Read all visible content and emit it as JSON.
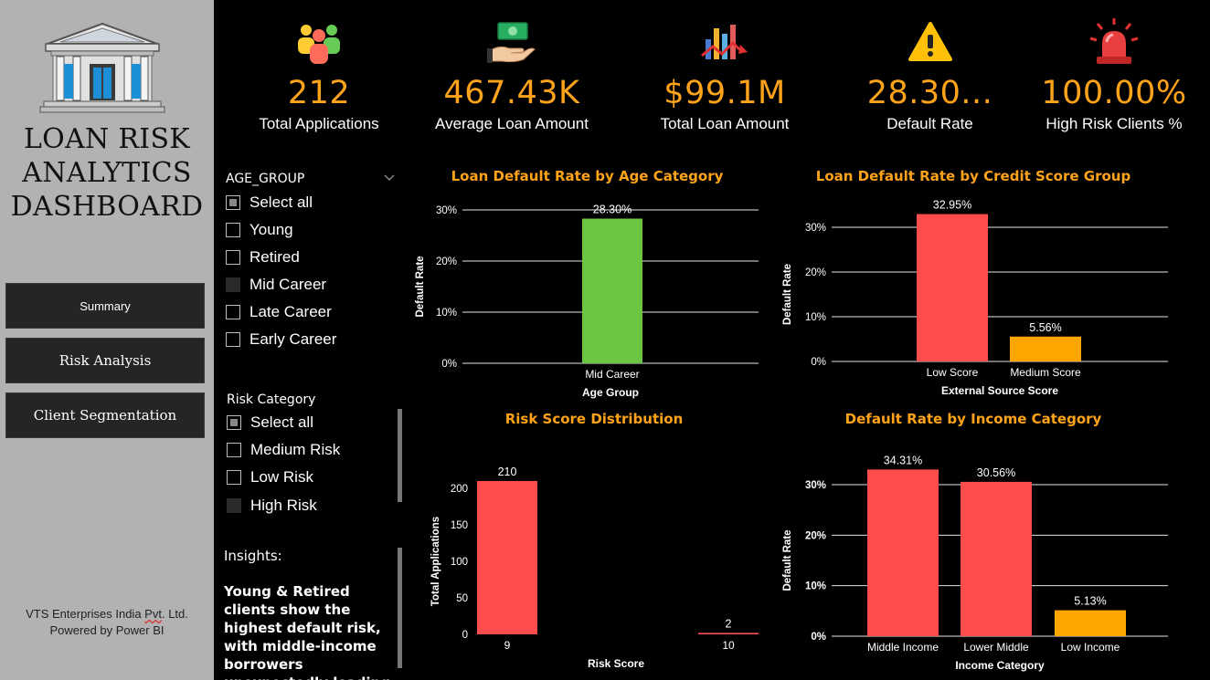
{
  "sidebar": {
    "title_line1": "LOAN RISK",
    "title_line2": "ANALYTICS",
    "title_line3": "DASHBOARD",
    "nav": [
      {
        "label": "Summary"
      },
      {
        "label": "Risk Analysis"
      },
      {
        "label": "Client Segmentation"
      }
    ],
    "footer_line1_a": "VTS Enterprises India ",
    "footer_line1_b": "Pvt",
    "footer_line1_c": ". Ltd.",
    "footer_line2": "Powered by Power BI"
  },
  "kpis": [
    {
      "value": "212",
      "label": "Total Applications",
      "icon": "people-icon"
    },
    {
      "value": "467.43K",
      "label": "Average Loan Amount",
      "icon": "money-hand-icon"
    },
    {
      "value": "$99.1M",
      "label": "Total Loan Amount",
      "icon": "bar-chart-icon"
    },
    {
      "value": "28.30...",
      "label": "Default Rate",
      "icon": "warning-icon"
    },
    {
      "value": "100.00%",
      "label": "High Risk Clients %",
      "icon": "siren-icon"
    }
  ],
  "slicers": {
    "age_group": {
      "title": "AGE_GROUP",
      "items": [
        "Select all",
        "Young",
        "Retired",
        "Mid Career",
        "Late Career",
        "Early Career"
      ]
    },
    "risk_category": {
      "title": "Risk Category",
      "items": [
        "Select all",
        "Medium Risk",
        "Low Risk",
        "High Risk"
      ]
    }
  },
  "insights": {
    "title": "Insights:",
    "text": "Young & Retired clients show the highest default risk, with middle-income borrowers unexpectedly leading in defaults."
  },
  "colors": {
    "accent": "#ffa31a",
    "red": "#ff4d4d",
    "green": "#6cc644",
    "orange": "#ffa500",
    "sidebar": "#b2b2b2"
  },
  "chart_data": [
    {
      "id": "age",
      "type": "bar",
      "title": "Loan Default Rate by Age Category",
      "xlabel": "Age Group",
      "ylabel": "Default Rate",
      "categories": [
        "Mid Career"
      ],
      "values": [
        28.3
      ],
      "labels": [
        "28.30%"
      ],
      "colors": [
        "#6cc644"
      ],
      "yticks": [
        "0%",
        "10%",
        "20%",
        "30%"
      ],
      "ylim": [
        0,
        30
      ]
    },
    {
      "id": "credit",
      "type": "bar",
      "title": "Loan Default Rate by Credit Score Group",
      "xlabel": "External Source Score",
      "ylabel": "Default Rate",
      "categories": [
        "Low Score",
        "Medium Score"
      ],
      "values": [
        32.95,
        5.56
      ],
      "labels": [
        "32.95%",
        "5.56%"
      ],
      "colors": [
        "#ff4d4d",
        "#ffa500"
      ],
      "yticks": [
        "0%",
        "10%",
        "20%",
        "30%"
      ],
      "ylim": [
        0,
        30
      ]
    },
    {
      "id": "risk",
      "type": "bar",
      "title": "Risk Score Distribution",
      "xlabel": "Risk Score",
      "ylabel": "Total Applications",
      "categories": [
        "9",
        "10"
      ],
      "values": [
        210,
        2
      ],
      "labels": [
        "210",
        "2"
      ],
      "colors": [
        "#ff4d4d",
        "#ff4d4d"
      ],
      "yticks": [
        "0",
        "50",
        "100",
        "150",
        "200"
      ],
      "ylim": [
        0,
        200
      ]
    },
    {
      "id": "income",
      "type": "bar",
      "title": "Default Rate by Income Category",
      "xlabel": "Income Category",
      "ylabel": "Default Rate",
      "categories": [
        "Middle Income",
        "Lower Middle",
        "Low Income"
      ],
      "values": [
        34.31,
        30.56,
        5.13
      ],
      "labels": [
        "34.31%",
        "30.56%",
        "5.13%"
      ],
      "colors": [
        "#ff4d4d",
        "#ff4d4d",
        "#ffa500"
      ],
      "yticks": [
        "0%",
        "10%",
        "20%",
        "30%"
      ],
      "ylim": [
        0,
        30
      ]
    }
  ]
}
